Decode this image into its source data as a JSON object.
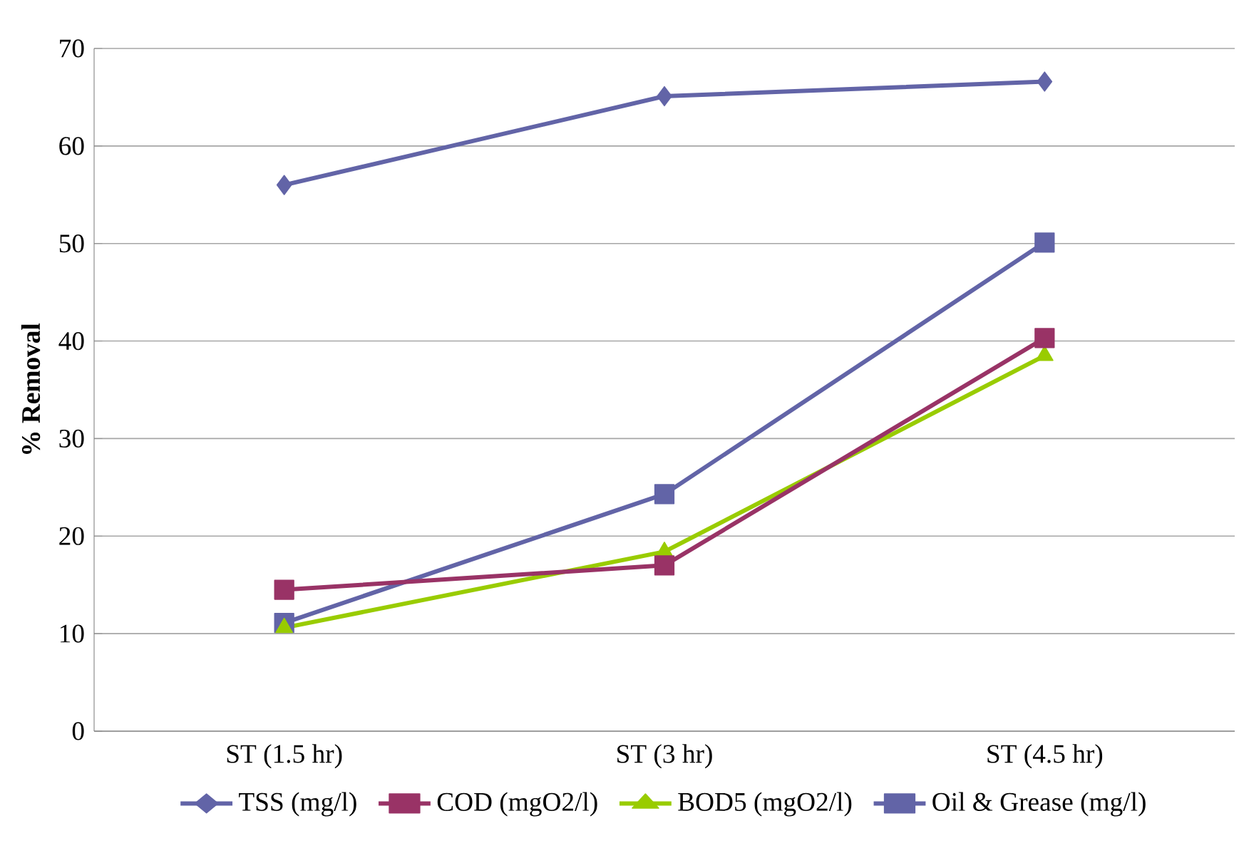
{
  "chart_data": {
    "type": "line",
    "ylabel": "% Removal",
    "categories": [
      "ST (1.5 hr)",
      "ST (3 hr)",
      "ST (4.5 hr)"
    ],
    "series": [
      {
        "name": "TSS (mg/l)",
        "color": "#6264a7",
        "marker": "diamond",
        "values": [
          56.0,
          65.1,
          66.6
        ]
      },
      {
        "name": "COD (mgO2/l)",
        "color": "#993366",
        "marker": "square",
        "values": [
          14.5,
          17.0,
          40.3
        ]
      },
      {
        "name": "BOD5 (mgO2/l)",
        "color": "#99cc00",
        "marker": "triangle",
        "values": [
          10.6,
          18.4,
          38.5
        ]
      },
      {
        "name": "Oil & Grease (mg/l)",
        "color": "#6264a7",
        "marker": "square",
        "values": [
          11.1,
          24.3,
          50.1
        ]
      }
    ],
    "ylim": [
      0,
      70
    ],
    "yticks": [
      0,
      10,
      20,
      30,
      40,
      50,
      60,
      70
    ],
    "grid": "y",
    "legend": "bottom"
  }
}
